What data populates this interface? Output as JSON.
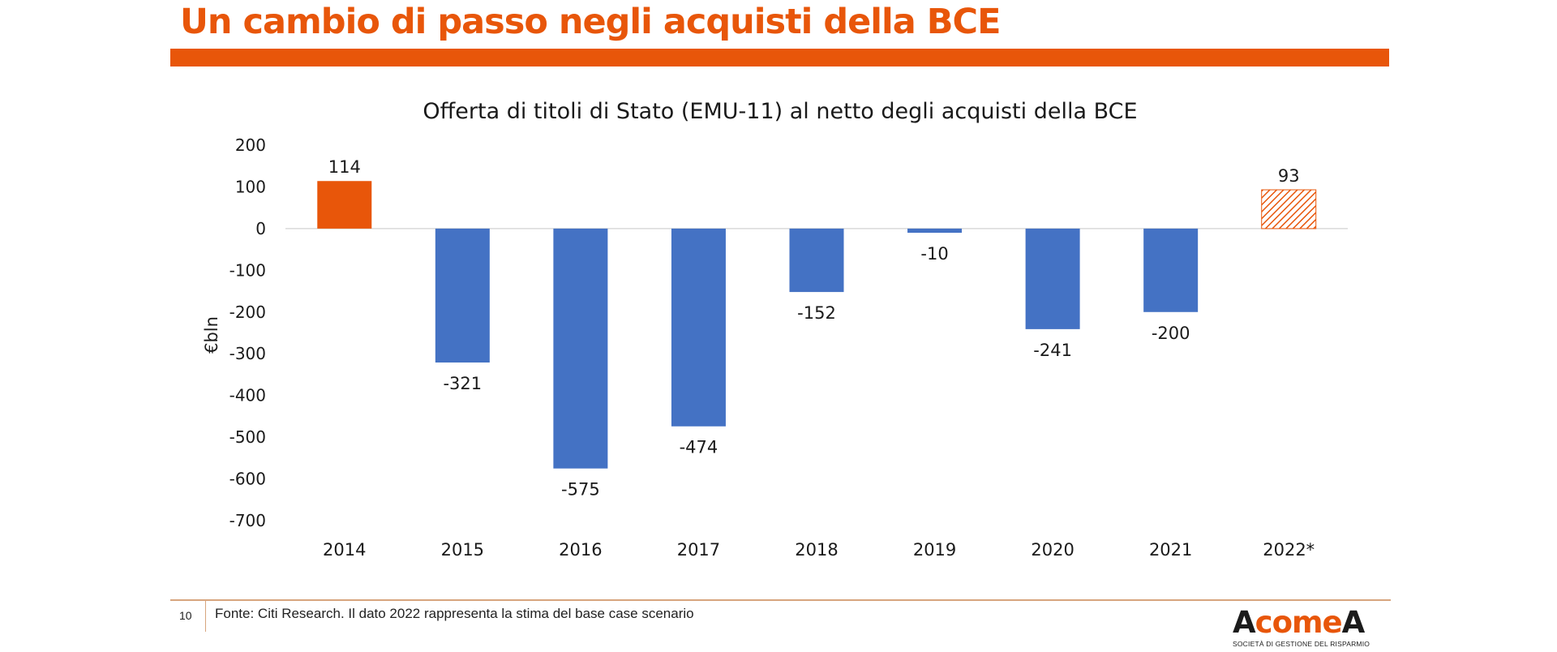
{
  "slide": {
    "title": "Un cambio di passo negli acquisti della BCE",
    "page_number": "10",
    "source_note": "Fonte: Citi Research. Il dato 2022 rappresenta la stima del base case scenario"
  },
  "logo": {
    "part1": "A",
    "part2": "come",
    "part3": "A",
    "tagline": "SOCIETÀ DI GESTIONE DEL RISPARMIO"
  },
  "colors": {
    "brand_orange": "#E8560A",
    "bar_blue": "#4472C4",
    "bar_orange": "#E8560A",
    "estimate_hatch": "#E8560A"
  },
  "chart_data": {
    "type": "bar",
    "title": "Offerta di titoli di Stato (EMU-11) al netto degli acquisti della BCE",
    "xlabel": "",
    "ylabel": "€bln",
    "ylim": [
      -700,
      200
    ],
    "yticks": [
      200,
      100,
      0,
      -100,
      -200,
      -300,
      -400,
      -500,
      -600,
      -700
    ],
    "grid": false,
    "legend": "none",
    "categories": [
      "2014",
      "2015",
      "2016",
      "2017",
      "2018",
      "2019",
      "2020",
      "2021",
      "2022*"
    ],
    "values": [
      114,
      -321,
      -575,
      -474,
      -152,
      -10,
      -241,
      -200,
      93
    ],
    "data_labels": [
      "114",
      "-321",
      "-575",
      "-474",
      "-152",
      "-10",
      "-241",
      "-200",
      "93"
    ],
    "bar_styles": [
      "solid-orange",
      "solid-blue",
      "solid-blue",
      "solid-blue",
      "solid-blue",
      "solid-blue",
      "solid-blue",
      "solid-blue",
      "hatched-orange"
    ]
  }
}
